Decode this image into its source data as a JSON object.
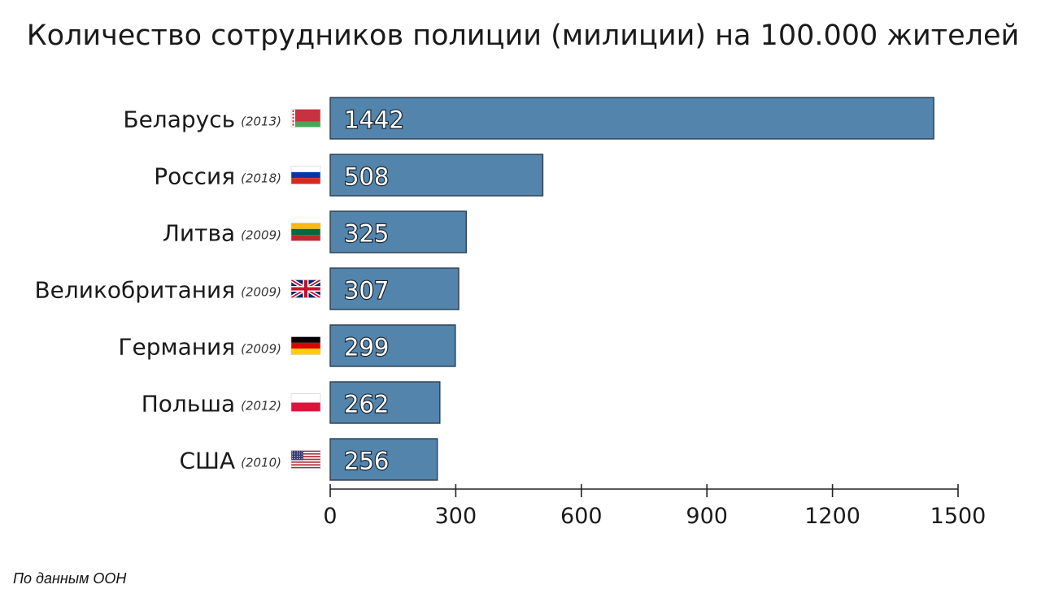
{
  "colors": {
    "bar_fill": "#5384ab",
    "bar_stroke": "#2c3e4c",
    "axis": "#222222"
  },
  "chart_data": {
    "type": "bar",
    "orientation": "horizontal",
    "title": "Количество сотрудников полиции (милиции) на 100.000 жителей",
    "categories": [
      "Беларусь",
      "Россия",
      "Литва",
      "Великобритания",
      "Германия",
      "Польша",
      "США"
    ],
    "years": [
      "(2013)",
      "(2018)",
      "(2009)",
      "(2009)",
      "(2009)",
      "(2012)",
      "(2010)"
    ],
    "flags": [
      "belarus-flag-icon",
      "russia-flag-icon",
      "lithuania-flag-icon",
      "uk-flag-icon",
      "germany-flag-icon",
      "poland-flag-icon",
      "usa-flag-icon"
    ],
    "values": [
      1442,
      508,
      325,
      307,
      299,
      262,
      256
    ],
    "xlim": [
      0,
      1500
    ],
    "xticks": [
      0,
      300,
      600,
      900,
      1200,
      1500
    ],
    "grid": false,
    "legend": "none"
  },
  "source": "По данным ООН"
}
